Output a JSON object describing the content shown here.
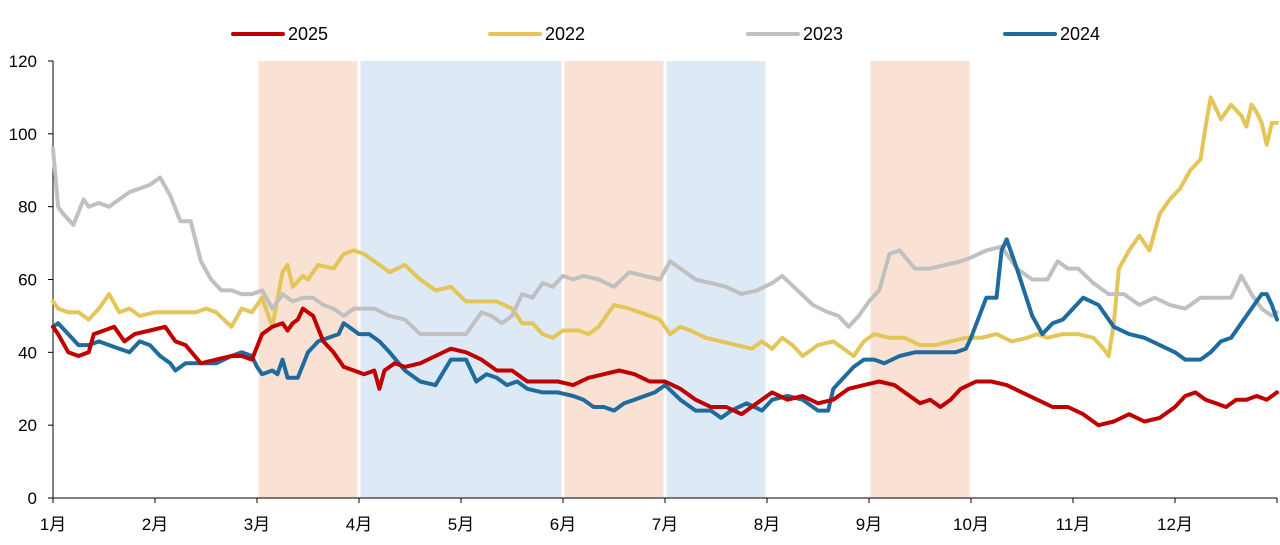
{
  "chart_data": {
    "type": "line",
    "title": "",
    "xlabel": "",
    "ylabel": "",
    "ylim": [
      0,
      120
    ],
    "xlim": [
      1,
      13
    ],
    "yticks": [
      "0",
      "20",
      "40",
      "60",
      "80",
      "100",
      "120"
    ],
    "categories": [
      "1月",
      "2月",
      "3月",
      "4月",
      "5月",
      "6月",
      "7月",
      "8月",
      "9月",
      "10月",
      "11月",
      "12月"
    ],
    "legend_position": "top",
    "gridlines": false,
    "shaded_periods": [
      {
        "from": 3,
        "to": 4,
        "color": "#f9e2d3"
      },
      {
        "from": 4,
        "to": 6,
        "color": "#dde9f5"
      },
      {
        "from": 6,
        "to": 7,
        "color": "#f9e2d3"
      },
      {
        "from": 7,
        "to": 8,
        "color": "#dde9f5"
      },
      {
        "from": 9,
        "to": 10,
        "color": "#f9e2d3"
      }
    ],
    "series": [
      {
        "name": "2022",
        "color": "#e3c559",
        "x": [
          1.0,
          1.05,
          1.15,
          1.25,
          1.35,
          1.45,
          1.55,
          1.65,
          1.75,
          1.85,
          2.0,
          2.2,
          2.4,
          2.5,
          2.6,
          2.75,
          2.85,
          2.95,
          3.05,
          3.15,
          3.25,
          3.3,
          3.35,
          3.45,
          3.5,
          3.6,
          3.75,
          3.85,
          3.95,
          4.05,
          4.15,
          4.3,
          4.45,
          4.6,
          4.75,
          4.9,
          5.05,
          5.2,
          5.35,
          5.5,
          5.6,
          5.7,
          5.8,
          5.9,
          6.0,
          6.15,
          6.25,
          6.35,
          6.5,
          6.65,
          6.75,
          6.85,
          6.95,
          7.05,
          7.15,
          7.25,
          7.4,
          7.55,
          7.7,
          7.85,
          7.95,
          8.05,
          8.15,
          8.25,
          8.35,
          8.5,
          8.65,
          8.75,
          8.85,
          8.95,
          9.05,
          9.2,
          9.35,
          9.5,
          9.65,
          9.8,
          9.95,
          10.1,
          10.25,
          10.4,
          10.55,
          10.65,
          10.75,
          10.9,
          11.05,
          11.2,
          11.3,
          11.35,
          11.4,
          11.45,
          11.55,
          11.65,
          11.75,
          11.85,
          11.95,
          12.05,
          12.15,
          12.25,
          12.3,
          12.35,
          12.4,
          12.45,
          12.55,
          12.65,
          12.7,
          12.75,
          12.8,
          12.85,
          12.9,
          12.95,
          13.0
        ],
        "values": [
          54,
          52,
          51,
          51,
          49,
          52,
          56,
          51,
          52,
          50,
          51,
          51,
          51,
          52,
          51,
          47,
          52,
          51,
          55,
          47,
          62,
          64,
          58,
          61,
          60,
          64,
          63,
          67,
          68,
          67,
          65,
          62,
          64,
          60,
          57,
          58,
          54,
          54,
          54,
          52,
          48,
          48,
          45,
          44,
          46,
          46,
          45,
          47,
          53,
          52,
          51,
          50,
          49,
          45,
          47,
          46,
          44,
          43,
          42,
          41,
          43,
          41,
          44,
          42,
          39,
          42,
          43,
          41,
          39,
          43,
          45,
          44,
          44,
          42,
          42,
          43,
          44,
          44,
          45,
          43,
          44,
          45,
          44,
          45,
          45,
          44,
          41,
          39,
          48,
          63,
          68,
          72,
          68,
          78,
          82,
          85,
          90,
          93,
          102,
          110,
          107,
          104,
          108,
          105,
          102,
          108,
          106,
          103,
          97,
          103,
          103
        ]
      },
      {
        "name": "2023",
        "color": "#c0c0c0",
        "x": [
          1.0,
          1.05,
          1.1,
          1.2,
          1.3,
          1.35,
          1.45,
          1.55,
          1.65,
          1.75,
          1.85,
          1.95,
          2.05,
          2.15,
          2.25,
          2.35,
          2.45,
          2.55,
          2.65,
          2.75,
          2.85,
          2.95,
          3.05,
          3.15,
          3.25,
          3.35,
          3.45,
          3.55,
          3.65,
          3.75,
          3.85,
          3.95,
          4.05,
          4.15,
          4.3,
          4.45,
          4.6,
          4.75,
          4.9,
          5.05,
          5.2,
          5.3,
          5.4,
          5.5,
          5.6,
          5.7,
          5.8,
          5.9,
          6.0,
          6.1,
          6.2,
          6.35,
          6.5,
          6.65,
          6.8,
          6.95,
          7.05,
          7.15,
          7.3,
          7.45,
          7.6,
          7.75,
          7.9,
          8.05,
          8.15,
          8.3,
          8.45,
          8.6,
          8.7,
          8.8,
          8.9,
          9.0,
          9.1,
          9.2,
          9.3,
          9.45,
          9.6,
          9.75,
          9.9,
          10.0,
          10.15,
          10.3,
          10.45,
          10.6,
          10.75,
          10.85,
          10.95,
          11.05,
          11.2,
          11.35,
          11.5,
          11.65,
          11.8,
          11.95,
          12.1,
          12.25,
          12.4,
          12.55,
          12.65,
          12.75,
          12.85,
          12.95,
          13.0
        ],
        "values": [
          96,
          80,
          78,
          75,
          82,
          80,
          81,
          80,
          82,
          84,
          85,
          86,
          88,
          83,
          76,
          76,
          65,
          60,
          57,
          57,
          56,
          56,
          57,
          52,
          56,
          54,
          55,
          55,
          53,
          52,
          50,
          52,
          52,
          52,
          50,
          49,
          45,
          45,
          45,
          45,
          51,
          50,
          48,
          50,
          56,
          55,
          59,
          58,
          61,
          60,
          61,
          60,
          58,
          62,
          61,
          60,
          65,
          63,
          60,
          59,
          58,
          56,
          57,
          59,
          61,
          57,
          53,
          51,
          50,
          47,
          50,
          54,
          57,
          67,
          68,
          63,
          63,
          64,
          65,
          66,
          68,
          69,
          63,
          60,
          60,
          65,
          63,
          63,
          59,
          56,
          56,
          53,
          55,
          53,
          52,
          55,
          55,
          55,
          61,
          56,
          52,
          50,
          51
        ]
      },
      {
        "name": "2024",
        "color": "#1f6b9e",
        "x": [
          1.0,
          1.05,
          1.15,
          1.25,
          1.35,
          1.45,
          1.55,
          1.65,
          1.75,
          1.85,
          1.95,
          2.05,
          2.15,
          2.2,
          2.3,
          2.45,
          2.6,
          2.75,
          2.85,
          2.95,
          3.0,
          3.05,
          3.15,
          3.2,
          3.25,
          3.3,
          3.4,
          3.5,
          3.6,
          3.7,
          3.8,
          3.85,
          3.9,
          4.0,
          4.1,
          4.2,
          4.3,
          4.45,
          4.6,
          4.75,
          4.9,
          5.05,
          5.15,
          5.25,
          5.35,
          5.45,
          5.55,
          5.65,
          5.8,
          5.95,
          6.1,
          6.2,
          6.3,
          6.4,
          6.5,
          6.6,
          6.7,
          6.8,
          6.9,
          7.0,
          7.15,
          7.3,
          7.45,
          7.55,
          7.65,
          7.8,
          7.95,
          8.05,
          8.2,
          8.35,
          8.5,
          8.6,
          8.65,
          8.75,
          8.85,
          8.95,
          9.05,
          9.15,
          9.3,
          9.45,
          9.6,
          9.75,
          9.85,
          9.95,
          10.0,
          10.15,
          10.25,
          10.3,
          10.35,
          10.45,
          10.6,
          10.7,
          10.8,
          10.9,
          11.0,
          11.1,
          11.25,
          11.4,
          11.55,
          11.7,
          11.85,
          12.0,
          12.1,
          12.25,
          12.35,
          12.45,
          12.55,
          12.65,
          12.75,
          12.85,
          12.9,
          12.95,
          13.0
        ],
        "values": [
          47,
          48,
          45,
          42,
          42,
          43,
          42,
          41,
          40,
          43,
          42,
          39,
          37,
          35,
          37,
          37,
          37,
          39,
          40,
          39,
          36,
          34,
          35,
          34,
          38,
          33,
          33,
          40,
          43,
          44,
          45,
          48,
          47,
          45,
          45,
          43,
          40,
          35,
          32,
          31,
          38,
          38,
          32,
          34,
          33,
          31,
          32,
          30,
          29,
          29,
          28,
          27,
          25,
          25,
          24,
          26,
          27,
          28,
          29,
          31,
          27,
          24,
          24,
          22,
          24,
          26,
          24,
          27,
          28,
          27,
          24,
          24,
          30,
          33,
          36,
          38,
          38,
          37,
          39,
          40,
          40,
          40,
          40,
          41,
          44,
          55,
          55,
          68,
          71,
          63,
          50,
          45,
          48,
          49,
          52,
          55,
          53,
          47,
          45,
          44,
          42,
          40,
          38,
          38,
          40,
          43,
          44,
          48,
          52,
          56,
          56,
          53,
          49
        ]
      },
      {
        "name": "2025",
        "color": "#c00000",
        "x": [
          1.0,
          1.05,
          1.15,
          1.25,
          1.35,
          1.4,
          1.5,
          1.6,
          1.7,
          1.8,
          1.95,
          2.1,
          2.2,
          2.3,
          2.45,
          2.6,
          2.75,
          2.85,
          2.95,
          3.05,
          3.15,
          3.25,
          3.3,
          3.35,
          3.4,
          3.45,
          3.5,
          3.55,
          3.65,
          3.75,
          3.85,
          3.95,
          4.05,
          4.15,
          4.2,
          4.25,
          4.35,
          4.45,
          4.6,
          4.75,
          4.9,
          5.05,
          5.2,
          5.35,
          5.5,
          5.65,
          5.8,
          5.95,
          6.1,
          6.25,
          6.4,
          6.55,
          6.7,
          6.85,
          7.0,
          7.15,
          7.3,
          7.45,
          7.6,
          7.75,
          7.9,
          8.05,
          8.2,
          8.35,
          8.5,
          8.65,
          8.8,
          8.95,
          9.1,
          9.25,
          9.4,
          9.5,
          9.6,
          9.7,
          9.8,
          9.9,
          10.05,
          10.2,
          10.35,
          10.5,
          10.65,
          10.8,
          10.95,
          11.1,
          11.25,
          11.4,
          11.55,
          11.7,
          11.85,
          12.0,
          12.1,
          12.2,
          12.3,
          12.4,
          12.5,
          12.6,
          12.7,
          12.8,
          12.9,
          13.0
        ],
        "values": [
          47,
          45,
          40,
          39,
          40,
          45,
          46,
          47,
          43,
          45,
          46,
          47,
          43,
          42,
          37,
          38,
          39,
          39,
          38,
          45,
          47,
          48,
          46,
          48,
          49,
          52,
          51,
          50,
          43,
          40,
          36,
          35,
          34,
          35,
          30,
          35,
          37,
          36,
          37,
          39,
          41,
          40,
          38,
          35,
          35,
          32,
          32,
          32,
          31,
          33,
          34,
          35,
          34,
          32,
          32,
          30,
          27,
          25,
          25,
          23,
          26,
          29,
          27,
          28,
          26,
          27,
          30,
          31,
          32,
          31,
          28,
          26,
          27,
          25,
          27,
          30,
          32,
          32,
          31,
          29,
          27,
          25,
          25,
          23,
          20,
          21,
          23,
          21,
          22,
          25,
          28,
          29,
          27,
          26,
          25,
          27,
          27,
          28,
          27,
          29
        ]
      }
    ],
    "legend": [
      {
        "name": "2025",
        "color": "#c00000"
      },
      {
        "name": "2022",
        "color": "#e3c559"
      },
      {
        "name": "2023",
        "color": "#c0c0c0"
      },
      {
        "name": "2024",
        "color": "#1f6b9e"
      }
    ]
  }
}
